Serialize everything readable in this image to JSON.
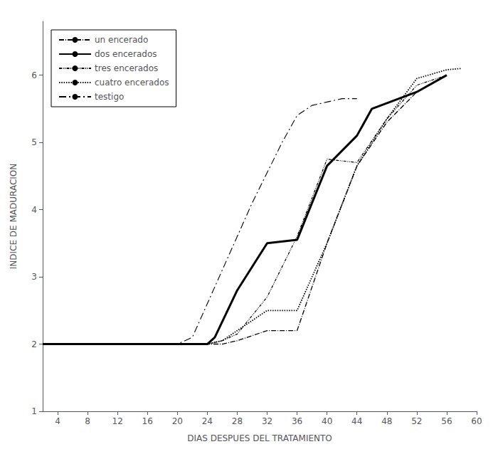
{
  "chart_data": {
    "type": "line",
    "xlabel": "DIAS DESPUES DEL TRATAMIENTO",
    "ylabel": "INDICE DE MADURACION",
    "xlim": [
      2,
      60
    ],
    "ylim": [
      1,
      6.8
    ],
    "xticks": [
      4,
      8,
      12,
      16,
      20,
      24,
      28,
      32,
      36,
      40,
      44,
      48,
      52,
      56,
      60
    ],
    "yticks": [
      1,
      2,
      3,
      4,
      5,
      6
    ],
    "grid": false,
    "legend": "upper left",
    "series": [
      {
        "name": "un encerado",
        "color": "black",
        "line_style": "dashdot_fine",
        "x": [
          2,
          4,
          8,
          12,
          16,
          20,
          24,
          26,
          28,
          32,
          36,
          40,
          44,
          48,
          52,
          56
        ],
        "values": [
          2,
          2,
          2,
          2,
          2,
          2,
          2,
          2,
          2.05,
          2.2,
          2.2,
          3.5,
          4.65,
          5.3,
          5.75,
          6.0
        ]
      },
      {
        "name": "dos encerados",
        "color": "black",
        "line_style": "solid",
        "x": [
          2,
          4,
          8,
          12,
          16,
          20,
          24,
          25,
          28,
          32,
          36,
          40,
          44,
          46,
          52,
          56
        ],
        "values": [
          2,
          2,
          2,
          2,
          2,
          2,
          2,
          2.1,
          2.8,
          3.5,
          3.55,
          4.65,
          5.1,
          5.5,
          5.75,
          6.0
        ]
      },
      {
        "name": "tres encerados",
        "color": "black",
        "line_style": "dense_dash",
        "x": [
          2,
          4,
          8,
          12,
          16,
          20,
          24,
          26,
          28,
          32,
          36,
          40,
          44,
          48,
          52,
          56
        ],
        "values": [
          2,
          2,
          2,
          2,
          2,
          2,
          2,
          2.05,
          2.15,
          2.7,
          3.6,
          4.75,
          4.7,
          5.35,
          5.85,
          6.0
        ]
      },
      {
        "name": "cuatro encerados",
        "color": "black",
        "line_style": "dotted",
        "x": [
          2,
          4,
          8,
          12,
          16,
          20,
          24,
          26,
          28,
          32,
          36,
          40,
          44,
          48,
          52,
          56,
          58
        ],
        "values": [
          2,
          2,
          2,
          2,
          2,
          2,
          2,
          2.05,
          2.2,
          2.5,
          2.5,
          3.5,
          4.65,
          5.35,
          5.95,
          6.08,
          6.1
        ]
      },
      {
        "name": "testigo",
        "color": "black",
        "line_style": "loosely_dashdotted",
        "x": [
          2,
          4,
          8,
          12,
          16,
          18,
          20,
          22,
          24,
          26,
          28,
          30,
          32,
          34,
          36,
          38,
          40,
          42,
          44
        ],
        "values": [
          2,
          2,
          2,
          2,
          2,
          2,
          2,
          2.1,
          2.6,
          3.1,
          3.6,
          4.1,
          4.55,
          5.0,
          5.4,
          5.55,
          5.6,
          5.65,
          5.65
        ]
      }
    ]
  }
}
